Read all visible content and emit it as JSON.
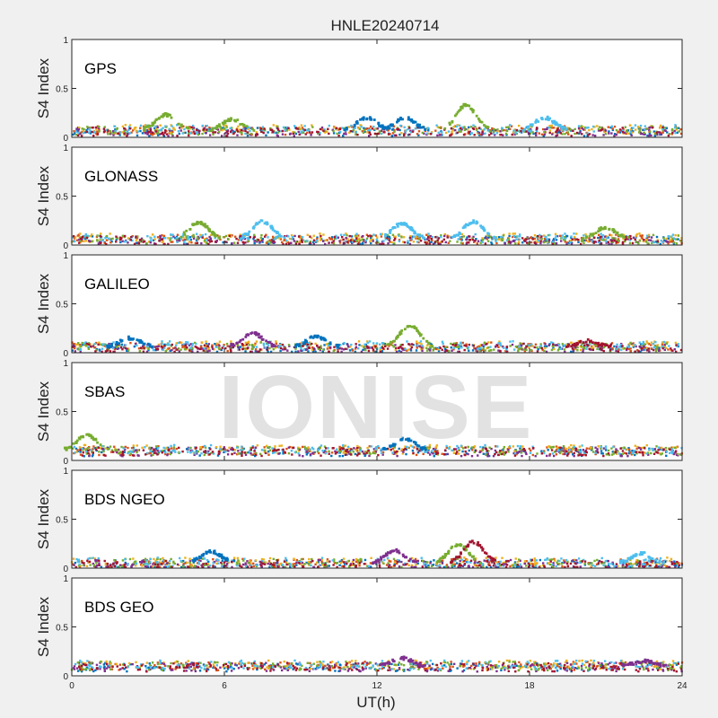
{
  "chart_data": {
    "type": "scatter",
    "title": "HNLE20240714",
    "xlabel": "UT(h)",
    "ylabel": "S4 Index",
    "xlim": [
      0,
      24
    ],
    "ylim": [
      0,
      1
    ],
    "x_ticks": [
      "0",
      "6",
      "12",
      "18",
      "24"
    ],
    "y_ticks": [
      "0",
      "0.5",
      "1"
    ],
    "watermark": "IONISE",
    "series_colors": [
      "#0072bd",
      "#d95319",
      "#edb120",
      "#7e2f8e",
      "#77ac30",
      "#4dbeee",
      "#a2142f"
    ],
    "panels": [
      {
        "label": "GPS",
        "baseline": 0.07,
        "peaks": [
          {
            "t": 3.7,
            "s4": 0.23,
            "series": 4
          },
          {
            "t": 6.3,
            "s4": 0.18,
            "series": 4
          },
          {
            "t": 11.6,
            "s4": 0.2,
            "series": 0
          },
          {
            "t": 13.1,
            "s4": 0.2,
            "series": 0
          },
          {
            "t": 15.5,
            "s4": 0.33,
            "series": 4
          },
          {
            "t": 18.6,
            "s4": 0.2,
            "series": 5
          }
        ]
      },
      {
        "label": "GLONASS",
        "baseline": 0.06,
        "peaks": [
          {
            "t": 5.0,
            "s4": 0.23,
            "series": 4
          },
          {
            "t": 7.5,
            "s4": 0.24,
            "series": 5
          },
          {
            "t": 13.0,
            "s4": 0.22,
            "series": 5
          },
          {
            "t": 15.8,
            "s4": 0.24,
            "series": 5
          },
          {
            "t": 21.0,
            "s4": 0.18,
            "series": 4
          }
        ]
      },
      {
        "label": "GALILEO",
        "baseline": 0.06,
        "peaks": [
          {
            "t": 2.3,
            "s4": 0.15,
            "series": 0
          },
          {
            "t": 7.1,
            "s4": 0.2,
            "series": 3
          },
          {
            "t": 9.6,
            "s4": 0.16,
            "series": 0
          },
          {
            "t": 13.3,
            "s4": 0.28,
            "series": 4
          },
          {
            "t": 20.3,
            "s4": 0.12,
            "series": 6
          }
        ]
      },
      {
        "label": "SBAS",
        "baseline": 0.1,
        "peaks": [
          {
            "t": 0.6,
            "s4": 0.26,
            "series": 4
          },
          {
            "t": 13.1,
            "s4": 0.22,
            "series": 0
          }
        ]
      },
      {
        "label": "BDS NGEO",
        "baseline": 0.05,
        "peaks": [
          {
            "t": 5.5,
            "s4": 0.17,
            "series": 0
          },
          {
            "t": 12.7,
            "s4": 0.18,
            "series": 3
          },
          {
            "t": 15.2,
            "s4": 0.24,
            "series": 4
          },
          {
            "t": 15.8,
            "s4": 0.27,
            "series": 6
          },
          {
            "t": 22.4,
            "s4": 0.15,
            "series": 5
          }
        ]
      },
      {
        "label": "BDS GEO",
        "baseline": 0.1,
        "peaks": [
          {
            "t": 13.0,
            "s4": 0.18,
            "series": 3
          },
          {
            "t": 22.5,
            "s4": 0.15,
            "series": 3
          }
        ]
      }
    ]
  }
}
